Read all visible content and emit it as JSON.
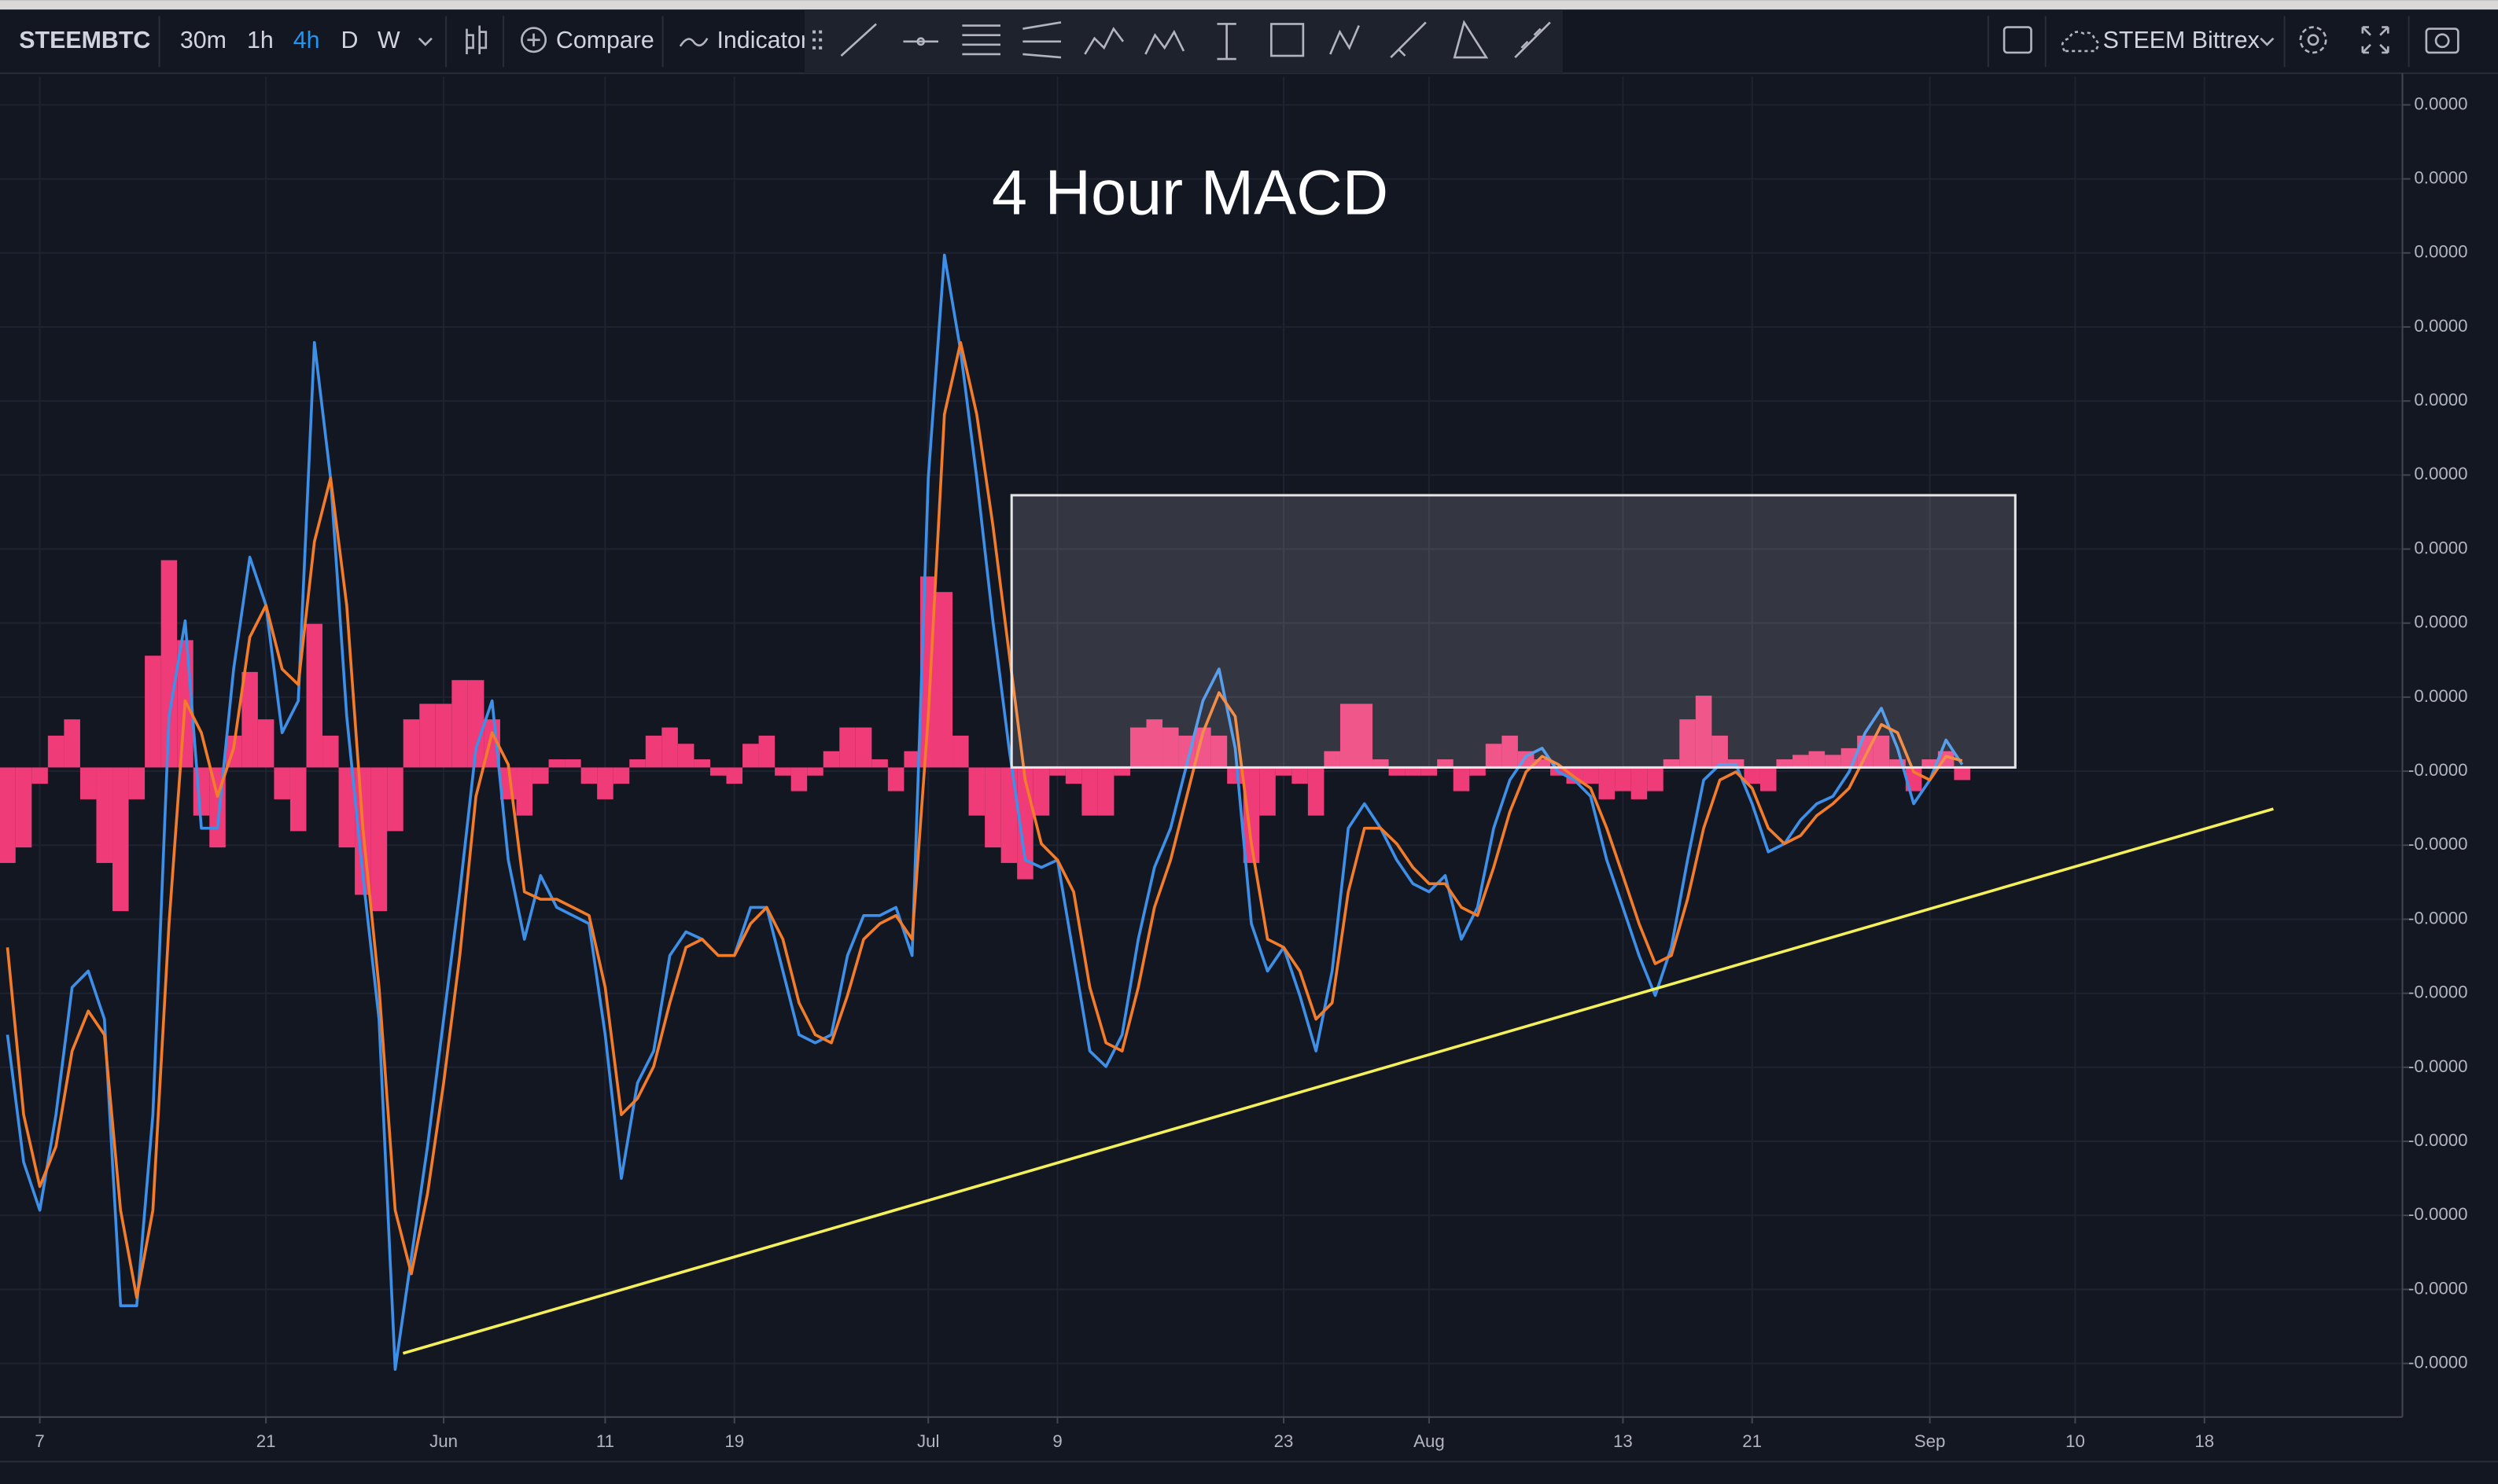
{
  "toolbar": {
    "symbol": "STEEMBTC",
    "intervals": [
      "30m",
      "1h",
      "4h",
      "D",
      "W"
    ],
    "compare": "Compare",
    "indicators": "Indicator",
    "source": "STEEM Bittrex"
  },
  "chart_data": {
    "type": "line",
    "title": "4 Hour MACD",
    "grid": true,
    "categories": [
      null,
      null,
      "7",
      null,
      null,
      null,
      null,
      null,
      null,
      null,
      null,
      null,
      null,
      null,
      null,
      null,
      "21",
      null,
      null,
      null,
      null,
      null,
      null,
      null,
      null,
      null,
      null,
      "Jun",
      null,
      null,
      null,
      null,
      null,
      null,
      null,
      null,
      null,
      "11",
      null,
      null,
      null,
      null,
      null,
      null,
      null,
      "19",
      null,
      null,
      null,
      null,
      null,
      null,
      null,
      null,
      null,
      null,
      null,
      "Jul",
      null,
      null,
      null,
      null,
      null,
      null,
      null,
      "9",
      null,
      null,
      null,
      null,
      null,
      null,
      null,
      null,
      null,
      null,
      null,
      null,
      null,
      "23",
      null,
      null,
      null,
      null,
      null,
      null,
      null,
      null,
      "Aug",
      null,
      null,
      null,
      null,
      null,
      null,
      null,
      null,
      null,
      null,
      null,
      "13",
      null,
      null,
      null,
      null,
      null,
      null,
      null,
      "21",
      null,
      null,
      null,
      null,
      null,
      null,
      null,
      null,
      null,
      null,
      "Sep",
      null,
      null,
      null,
      null,
      null,
      null,
      null,
      null,
      "10",
      null,
      null,
      null,
      null,
      null,
      null,
      null,
      "18",
      null,
      null,
      null,
      null,
      null,
      null,
      null,
      null,
      null,
      null,
      null,
      null
    ],
    "ylim": [
      -8.774e-06,
      9.333e-06
    ],
    "yticks": [
      {
        "value": 8.95e-06,
        "label": "0.0000"
      },
      {
        "value": 7.95e-06,
        "label": "0.0000"
      },
      {
        "value": 6.95e-06,
        "label": "0.0000"
      },
      {
        "value": 5.95e-06,
        "label": "0.0000"
      },
      {
        "value": 4.95e-06,
        "label": "0.0000"
      },
      {
        "value": 3.95e-06,
        "label": "0.0000"
      },
      {
        "value": 2.95e-06,
        "label": "0.0000"
      },
      {
        "value": 1.95e-06,
        "label": "0.0000"
      },
      {
        "value": 9.5e-07,
        "label": "0.0000"
      },
      {
        "value": -5e-08,
        "label": "-0.0000"
      },
      {
        "value": -1.05e-06,
        "label": "-0.0000"
      },
      {
        "value": -2.05e-06,
        "label": "-0.0000"
      },
      {
        "value": -3.05e-06,
        "label": "-0.0000"
      },
      {
        "value": -4.05e-06,
        "label": "-0.0000"
      },
      {
        "value": -5.05e-06,
        "label": "-0.0000"
      },
      {
        "value": -6.05e-06,
        "label": "-0.0000"
      },
      {
        "value": -7.05e-06,
        "label": "-0.0000"
      },
      {
        "value": -8.05e-06,
        "label": "-0.0000"
      }
    ],
    "series": [
      {
        "type": "bar",
        "color": "#ef3b78",
        "values": [
          -1.29e-06,
          -1.08e-06,
          -2.2e-07,
          4.3e-07,
          6.5e-07,
          -4.3e-07,
          -1.29e-06,
          -1.94e-06,
          -4.3e-07,
          1.51e-06,
          2.8e-06,
          1.72e-06,
          -6.5e-07,
          -1.08e-06,
          4.3e-07,
          1.29e-06,
          6.5e-07,
          -4.3e-07,
          -8.6e-07,
          1.94e-06,
          4.3e-07,
          -1.08e-06,
          -1.72e-06,
          -1.94e-06,
          -8.6e-07,
          6.5e-07,
          8.6e-07,
          8.6e-07,
          1.18e-06,
          1.18e-06,
          6.5e-07,
          -4.3e-07,
          -6.5e-07,
          -2.2e-07,
          1.1e-07,
          1.1e-07,
          -2.2e-07,
          -4.3e-07,
          -2.2e-07,
          1.1e-07,
          4.3e-07,
          5.4e-07,
          3.2e-07,
          1.1e-07,
          -1.1e-07,
          -2.2e-07,
          3.2e-07,
          4.3e-07,
          -1.1e-07,
          -3.2e-07,
          -1.1e-07,
          2.2e-07,
          5.4e-07,
          5.4e-07,
          1.1e-07,
          -3.2e-07,
          2.2e-07,
          2.58e-06,
          2.37e-06,
          4.3e-07,
          -6.5e-07,
          -1.08e-06,
          -1.29e-06,
          -1.51e-06,
          -6.5e-07,
          -1.1e-07,
          -2.2e-07,
          -6.5e-07,
          -6.5e-07,
          -1.1e-07,
          5.4e-07,
          6.5e-07,
          5.4e-07,
          4.3e-07,
          5.4e-07,
          4.3e-07,
          -2.2e-07,
          -1.29e-06,
          -6.5e-07,
          -1.1e-07,
          -2.2e-07,
          -6.5e-07,
          2.2e-07,
          8.6e-07,
          8.6e-07,
          1.1e-07,
          -1.1e-07,
          -1.1e-07,
          -1.1e-07,
          1.1e-07,
          -3.2e-07,
          -1.1e-07,
          3.2e-07,
          4.3e-07,
          2.2e-07,
          1.1e-07,
          -1.1e-07,
          -2.2e-07,
          -2.2e-07,
          -4.3e-07,
          -3.2e-07,
          -4.3e-07,
          -3.2e-07,
          1.1e-07,
          6.5e-07,
          9.7e-07,
          4.3e-07,
          1.1e-07,
          -2.2e-07,
          -3.2e-07,
          1.1e-07,
          1.7e-07,
          2.2e-07,
          1.7e-07,
          2.6e-07,
          4.3e-07,
          4.3e-07,
          1.1e-07,
          -3.2e-07,
          1.1e-07,
          2.2e-07,
          -1.7e-07,
          null,
          null,
          null,
          null,
          null,
          null,
          null,
          null,
          null,
          null,
          null,
          null,
          null,
          null,
          null,
          null,
          null,
          null,
          null,
          null,
          null,
          null,
          null,
          null,
          null,
          null,
          null
        ]
      },
      {
        "color": "#3d8fe8",
        "values": [
          -3.61e-06,
          -5.33e-06,
          -5.98e-06,
          -4.69e-06,
          -2.97e-06,
          -2.75e-06,
          -3.4e-06,
          -7.27e-06,
          -7.27e-06,
          -4.69e-06,
          6.9e-07,
          1.98e-06,
          -8.2e-07,
          -8.2e-07,
          1.33e-06,
          2.84e-06,
          2.19e-06,
          4.7e-07,
          9e-07,
          5.74e-06,
          3.91e-06,
          6.9e-07,
          -1.46e-06,
          -3.4e-06,
          -8.13e-06,
          -6.62e-06,
          -5.12e-06,
          -3.4e-06,
          -1.68e-06,
          2.6e-07,
          9e-07,
          -1.25e-06,
          -2.32e-06,
          -1.46e-06,
          -1.89e-06,
          -2e-06,
          -2.11e-06,
          -3.61e-06,
          -5.55e-06,
          -4.26e-06,
          -3.83e-06,
          -2.54e-06,
          -2.22e-06,
          -2.32e-06,
          -2.54e-06,
          -2.54e-06,
          -1.89e-06,
          -1.89e-06,
          -2.75e-06,
          -3.61e-06,
          -3.72e-06,
          -3.61e-06,
          -2.54e-06,
          -2e-06,
          -2e-06,
          -1.89e-06,
          -2.54e-06,
          3.91e-06,
          6.92e-06,
          5.63e-06,
          3.91e-06,
          1.98e-06,
          2.6e-07,
          -1.25e-06,
          -1.35e-06,
          -1.25e-06,
          -2.54e-06,
          -3.83e-06,
          -4.04e-06,
          -3.61e-06,
          -2.32e-06,
          -1.35e-06,
          -8.2e-07,
          4e-08,
          9e-07,
          1.33e-06,
          2.6e-07,
          -2.11e-06,
          -2.75e-06,
          -2.43e-06,
          -3.08e-06,
          -3.83e-06,
          -2.75e-06,
          -8.2e-07,
          -4.9e-07,
          -8.2e-07,
          -1.25e-06,
          -1.57e-06,
          -1.68e-06,
          -1.46e-06,
          -2.32e-06,
          -1.89e-06,
          -8.2e-07,
          -1.7e-07,
          1.5e-07,
          2.6e-07,
          -6e-08,
          -1.7e-07,
          -3.9e-07,
          -1.25e-06,
          -1.89e-06,
          -2.54e-06,
          -3.08e-06,
          -2.43e-06,
          -1.25e-06,
          -1.7e-07,
          4e-08,
          4e-08,
          -4.9e-07,
          -1.14e-06,
          -1.03e-06,
          -7.1e-07,
          -4.9e-07,
          -3.9e-07,
          -6e-08,
          4.7e-07,
          8e-07,
          2.6e-07,
          -4.9e-07,
          -1.7e-07,
          3.7e-07,
          4e-08,
          null,
          null,
          null,
          null,
          null,
          null,
          null,
          null,
          null,
          null,
          null,
          null,
          null,
          null,
          null,
          null,
          null,
          null,
          null,
          null,
          null,
          null,
          null,
          null,
          null,
          null,
          null
        ]
      },
      {
        "color": "#f27c2a",
        "values": [
          -2.43e-06,
          -4.69e-06,
          -5.66e-06,
          -5.12e-06,
          -3.83e-06,
          -3.29e-06,
          -3.61e-06,
          -5.98e-06,
          -7.16e-06,
          -5.98e-06,
          -2.11e-06,
          9e-07,
          4.7e-07,
          -3.9e-07,
          2.6e-07,
          1.76e-06,
          2.19e-06,
          1.33e-06,
          1.12e-06,
          3.05e-06,
          3.91e-06,
          2.19e-06,
          -8.2e-07,
          -2.97e-06,
          -5.98e-06,
          -6.84e-06,
          -5.76e-06,
          -4.26e-06,
          -2.54e-06,
          -3.9e-07,
          4.7e-07,
          4e-08,
          -1.68e-06,
          -1.78e-06,
          -1.78e-06,
          -1.89e-06,
          -2e-06,
          -2.97e-06,
          -4.69e-06,
          -4.47e-06,
          -4.04e-06,
          -3.18e-06,
          -2.43e-06,
          -2.32e-06,
          -2.54e-06,
          -2.54e-06,
          -2.11e-06,
          -1.89e-06,
          -2.32e-06,
          -3.18e-06,
          -3.61e-06,
          -3.72e-06,
          -3.08e-06,
          -2.32e-06,
          -2.11e-06,
          -2e-06,
          -2.32e-06,
          6.9e-07,
          4.77e-06,
          5.74e-06,
          4.77e-06,
          3.27e-06,
          1.55e-06,
          -1.7e-07,
          -1.03e-06,
          -1.25e-06,
          -1.68e-06,
          -2.97e-06,
          -3.72e-06,
          -3.83e-06,
          -2.97e-06,
          -1.89e-06,
          -1.25e-06,
          -3.9e-07,
          4.7e-07,
          1.01e-06,
          6.9e-07,
          -1.03e-06,
          -2.32e-06,
          -2.43e-06,
          -2.75e-06,
          -3.4e-06,
          -3.18e-06,
          -1.68e-06,
          -8.2e-07,
          -8.2e-07,
          -1.03e-06,
          -1.35e-06,
          -1.57e-06,
          -1.57e-06,
          -1.89e-06,
          -2e-06,
          -1.35e-06,
          -6e-07,
          -6e-08,
          1.5e-07,
          4e-08,
          -1.3e-07,
          -2.8e-07,
          -8.2e-07,
          -1.46e-06,
          -2.11e-06,
          -2.65e-06,
          -2.54e-06,
          -1.78e-06,
          -8.2e-07,
          -1.7e-07,
          -6e-08,
          -2.8e-07,
          -8.2e-07,
          -1.03e-06,
          -9.2e-07,
          -6.5e-07,
          -4.9e-07,
          -2.8e-07,
          1.5e-07,
          5.8e-07,
          4.7e-07,
          -6e-08,
          -1.7e-07,
          1.5e-07,
          9e-08,
          null,
          null,
          null,
          null,
          null,
          null,
          null,
          null,
          null,
          null,
          null,
          null,
          null,
          null,
          null,
          null,
          null,
          null,
          null,
          null,
          null,
          null,
          null,
          null,
          null,
          null,
          null
        ]
      }
    ]
  }
}
